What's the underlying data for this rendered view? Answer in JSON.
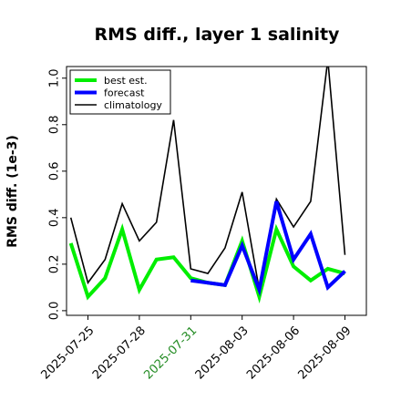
{
  "chart_data": {
    "type": "line",
    "title": "RMS diff., layer 1 salinity",
    "xlabel": "",
    "ylabel": "RMS diff. (1e-3)",
    "ylim": [
      -0.02,
      1.05
    ],
    "y_ticks": [
      0.0,
      0.2,
      0.4,
      0.6,
      0.8,
      1.0
    ],
    "y_tick_labels": [
      "0.0",
      "0.2",
      "0.4",
      "0.6",
      "0.8",
      "1.0"
    ],
    "x_ticks": [
      "2025-07-25",
      "2025-07-28",
      "2025-07-31",
      "2025-08-03",
      "2025-08-06",
      "2025-08-09"
    ],
    "x_tick_colors": [
      "#000000",
      "#000000",
      "#228b22",
      "#000000",
      "#000000",
      "#000000"
    ],
    "x_range": [
      "2025-07-23T18:00",
      "2025-08-10T06:00"
    ],
    "grid": false,
    "legend_placement": "top-left",
    "x": [
      "2025-07-24",
      "2025-07-25",
      "2025-07-26",
      "2025-07-27",
      "2025-07-28",
      "2025-07-29",
      "2025-07-30",
      "2025-07-31",
      "2025-08-01",
      "2025-08-02",
      "2025-08-03",
      "2025-08-04",
      "2025-08-05",
      "2025-08-06",
      "2025-08-07",
      "2025-08-08",
      "2025-08-09"
    ],
    "series": [
      {
        "name": "best est.",
        "color": "#00ee00",
        "values": [
          0.29,
          0.06,
          0.14,
          0.35,
          0.09,
          0.22,
          0.23,
          0.14,
          0.12,
          0.11,
          0.3,
          0.06,
          0.35,
          0.19,
          0.13,
          0.18,
          0.16
        ]
      },
      {
        "name": "forecast",
        "color": "#0000ff",
        "values": [
          null,
          null,
          null,
          null,
          null,
          null,
          null,
          0.13,
          0.12,
          0.11,
          0.28,
          0.09,
          0.47,
          0.22,
          0.33,
          0.1,
          0.17
        ]
      },
      {
        "name": "climatology",
        "color": "#000000",
        "values": [
          0.4,
          0.12,
          0.22,
          0.46,
          0.3,
          0.38,
          0.82,
          0.18,
          0.16,
          0.27,
          0.51,
          0.09,
          0.48,
          0.36,
          0.47,
          1.08,
          0.24
        ]
      }
    ]
  }
}
